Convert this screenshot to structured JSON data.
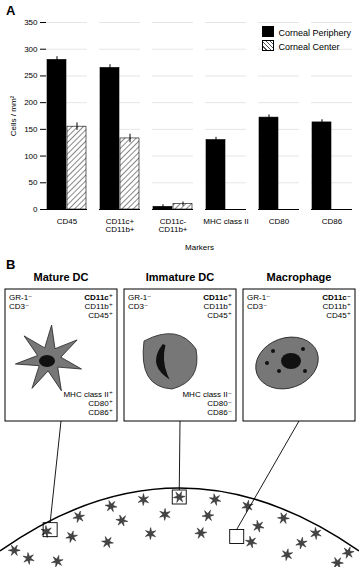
{
  "chart_data": {
    "type": "bar",
    "title": "A",
    "categories": [
      "CD45",
      "CD11c+\nCD11b+",
      "CD11c-\nCD11b+",
      "MHC class II",
      "CD80",
      "CD86"
    ],
    "series": [
      {
        "name": "Corneal Periphery",
        "color": "#000000",
        "values": [
          280,
          265,
          5,
          130,
          172,
          163
        ],
        "errors": [
          6,
          6,
          4,
          5,
          5,
          5
        ]
      },
      {
        "name": "Corneal Center",
        "color": "#555555",
        "values": [
          155,
          133,
          10,
          null,
          null,
          null
        ],
        "errors": [
          7,
          8,
          4,
          null,
          null,
          null
        ]
      }
    ],
    "x_label": "Markers",
    "y_label": "Cells / mm²",
    "ylim": [
      0,
      350
    ],
    "yticks": [
      0,
      50,
      100,
      150,
      200,
      250,
      300,
      350
    ],
    "grid": true,
    "legend": "top-right"
  },
  "diagram": {
    "label": "B",
    "cells": [
      {
        "title": "Mature DC",
        "negative": [
          "GR-1⁻",
          "CD3⁻"
        ],
        "surface": [
          "CD11c⁺",
          "CD11b⁺",
          "CD45⁺"
        ],
        "activation": [
          "MHC class II⁺",
          "CD80⁺",
          "CD86⁺"
        ]
      },
      {
        "title": "Immature DC",
        "negative": [
          "GR-1⁻",
          "CD3⁻"
        ],
        "surface": [
          "CD11c⁺",
          "CD11b⁺",
          "CD45⁺"
        ],
        "activation": [
          "MHC class II⁻",
          "CD80⁻",
          "CD86⁻"
        ]
      },
      {
        "title": "Macrophage",
        "negative": [
          "GR-1⁻",
          "CD3⁻"
        ],
        "surface": [
          "CD11c⁻",
          "CD11b⁺",
          "CD45⁺"
        ]
      }
    ]
  }
}
